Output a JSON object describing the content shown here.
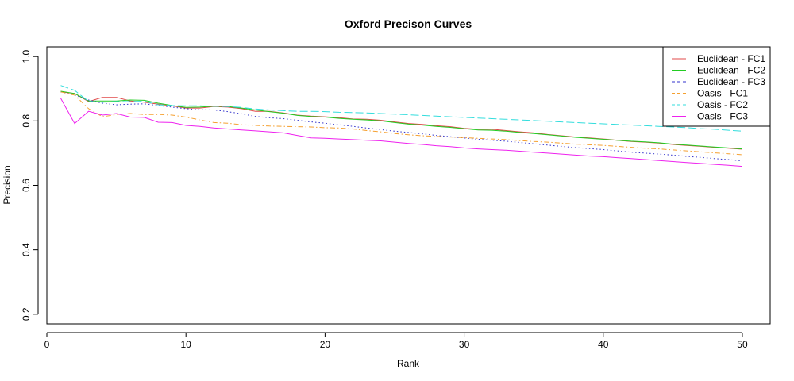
{
  "chart_data": {
    "type": "line",
    "title": "Oxford Precison Curves",
    "xlabel": "Rank",
    "ylabel": "Precision",
    "xlim": [
      0,
      52
    ],
    "ylim": [
      0.17,
      1.03
    ],
    "xticks": [
      0,
      10,
      20,
      30,
      40,
      50
    ],
    "yticks": [
      0.2,
      0.4,
      0.6,
      0.8,
      1.0
    ],
    "ytick_labels": [
      "0.2",
      "0.4",
      "0.6",
      "0.8",
      "1.0"
    ],
    "grid": false,
    "legend_position": "top-right",
    "x": [
      1,
      2,
      3,
      4,
      5,
      6,
      7,
      8,
      9,
      10,
      11,
      12,
      13,
      14,
      15,
      16,
      17,
      18,
      19,
      20,
      21,
      22,
      23,
      24,
      25,
      26,
      27,
      28,
      29,
      30,
      31,
      32,
      33,
      34,
      35,
      36,
      37,
      38,
      39,
      40,
      41,
      42,
      43,
      44,
      45,
      46,
      47,
      48,
      49,
      50
    ],
    "series": [
      {
        "name": "Euclidean - FC1",
        "color": "#e04848",
        "dash": "solid",
        "values": [
          0.89,
          0.885,
          0.86,
          0.873,
          0.873,
          0.862,
          0.858,
          0.852,
          0.847,
          0.84,
          0.84,
          0.845,
          0.843,
          0.838,
          0.83,
          0.83,
          0.825,
          0.818,
          0.815,
          0.813,
          0.81,
          0.806,
          0.805,
          0.802,
          0.797,
          0.792,
          0.789,
          0.785,
          0.782,
          0.777,
          0.774,
          0.774,
          0.77,
          0.766,
          0.763,
          0.758,
          0.754,
          0.75,
          0.747,
          0.744,
          0.74,
          0.736,
          0.734,
          0.731,
          0.727,
          0.724,
          0.721,
          0.718,
          0.715,
          0.712
        ]
      },
      {
        "name": "Euclidean - FC2",
        "color": "#22cc22",
        "dash": "solid",
        "values": [
          0.892,
          0.885,
          0.862,
          0.862,
          0.862,
          0.865,
          0.864,
          0.855,
          0.848,
          0.842,
          0.843,
          0.846,
          0.845,
          0.84,
          0.834,
          0.829,
          0.824,
          0.817,
          0.814,
          0.812,
          0.808,
          0.805,
          0.803,
          0.8,
          0.795,
          0.79,
          0.787,
          0.783,
          0.78,
          0.776,
          0.772,
          0.771,
          0.768,
          0.764,
          0.761,
          0.757,
          0.753,
          0.749,
          0.746,
          0.743,
          0.74,
          0.737,
          0.735,
          0.732,
          0.728,
          0.725,
          0.722,
          0.719,
          0.716,
          0.713
        ]
      },
      {
        "name": "Euclidean - FC3",
        "color": "#3333cc",
        "dash": "dotted",
        "values": [
          0.89,
          0.88,
          0.865,
          0.855,
          0.85,
          0.852,
          0.853,
          0.848,
          0.843,
          0.838,
          0.835,
          0.834,
          0.829,
          0.822,
          0.814,
          0.81,
          0.807,
          0.802,
          0.797,
          0.793,
          0.788,
          0.783,
          0.778,
          0.773,
          0.768,
          0.764,
          0.76,
          0.755,
          0.751,
          0.747,
          0.743,
          0.74,
          0.737,
          0.733,
          0.729,
          0.725,
          0.721,
          0.717,
          0.714,
          0.711,
          0.707,
          0.703,
          0.7,
          0.697,
          0.694,
          0.69,
          0.687,
          0.683,
          0.68,
          0.676
        ]
      },
      {
        "name": "Oasis - FC1",
        "color": "#f5a030",
        "dash": "dashdot",
        "values": [
          0.89,
          0.88,
          0.838,
          0.813,
          0.82,
          0.823,
          0.82,
          0.82,
          0.818,
          0.812,
          0.803,
          0.795,
          0.793,
          0.788,
          0.786,
          0.784,
          0.783,
          0.782,
          0.781,
          0.779,
          0.778,
          0.775,
          0.77,
          0.766,
          0.761,
          0.757,
          0.754,
          0.752,
          0.75,
          0.748,
          0.746,
          0.744,
          0.742,
          0.739,
          0.736,
          0.734,
          0.731,
          0.728,
          0.726,
          0.724,
          0.721,
          0.718,
          0.715,
          0.713,
          0.71,
          0.707,
          0.704,
          0.701,
          0.698,
          0.695
        ]
      },
      {
        "name": "Oasis - FC2",
        "color": "#33dddd",
        "dash": "longdash",
        "values": [
          0.91,
          0.895,
          0.86,
          0.858,
          0.86,
          0.86,
          0.861,
          0.85,
          0.848,
          0.847,
          0.847,
          0.846,
          0.845,
          0.842,
          0.837,
          0.834,
          0.832,
          0.83,
          0.83,
          0.829,
          0.827,
          0.826,
          0.825,
          0.823,
          0.821,
          0.819,
          0.817,
          0.815,
          0.813,
          0.811,
          0.809,
          0.807,
          0.805,
          0.803,
          0.801,
          0.799,
          0.797,
          0.795,
          0.793,
          0.791,
          0.789,
          0.787,
          0.785,
          0.783,
          0.781,
          0.779,
          0.776,
          0.774,
          0.771,
          0.768
        ]
      },
      {
        "name": "Oasis - FC3",
        "color": "#ee22ee",
        "dash": "solid",
        "values": [
          0.87,
          0.792,
          0.83,
          0.818,
          0.823,
          0.812,
          0.811,
          0.796,
          0.795,
          0.786,
          0.783,
          0.778,
          0.775,
          0.772,
          0.769,
          0.766,
          0.763,
          0.755,
          0.747,
          0.746,
          0.744,
          0.742,
          0.74,
          0.738,
          0.734,
          0.73,
          0.727,
          0.723,
          0.72,
          0.716,
          0.713,
          0.711,
          0.709,
          0.706,
          0.703,
          0.7,
          0.697,
          0.694,
          0.691,
          0.689,
          0.686,
          0.683,
          0.68,
          0.677,
          0.674,
          0.671,
          0.668,
          0.665,
          0.662,
          0.659
        ]
      }
    ]
  }
}
